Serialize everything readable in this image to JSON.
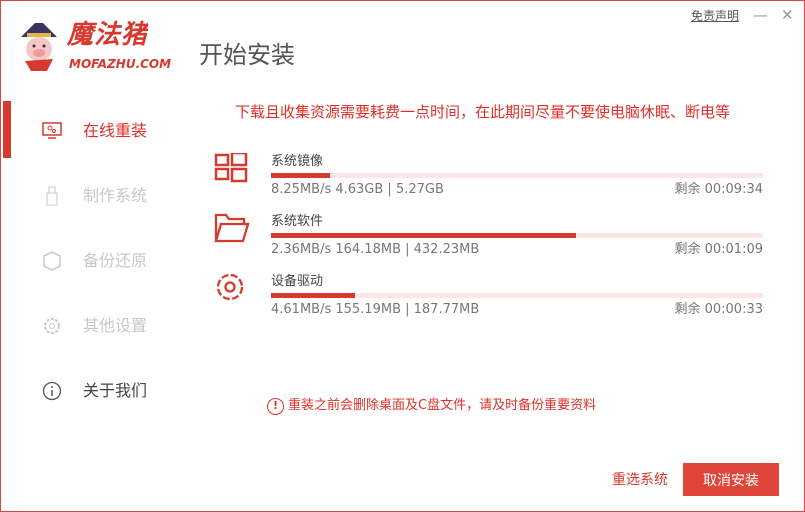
{
  "brand": {
    "name_cn": "魔法猪",
    "name_en": "MOFAZHU.COM"
  },
  "header": {
    "title": "开始安装",
    "disclaimer": "免责声明",
    "minimize": "—",
    "close": "✕"
  },
  "colors": {
    "accent": "#d63a2f",
    "bar_bg": "#fde6e6",
    "disabled": "#c8c8c8"
  },
  "sidebar": {
    "items": [
      {
        "label": "在线重装",
        "icon": "monitor-icon",
        "state": "active"
      },
      {
        "label": "制作系统",
        "icon": "usb-icon",
        "state": "disabled"
      },
      {
        "label": "备份还原",
        "icon": "backup-icon",
        "state": "disabled"
      },
      {
        "label": "其他设置",
        "icon": "gear-icon",
        "state": "disabled"
      },
      {
        "label": "关于我们",
        "icon": "info-icon",
        "state": "normal"
      }
    ]
  },
  "main": {
    "warning": "下载且收集资源需要耗费一点时间，在此期间尽量不要使电脑休眠、断电等",
    "downloads": [
      {
        "name": "系统镜像",
        "icon": "windows-icon",
        "speed": "8.25MB/s 4.63GB | 5.27GB",
        "remaining": "剩余 00:09:34",
        "progress": 0.12
      },
      {
        "name": "系统软件",
        "icon": "folder-icon",
        "speed": "2.36MB/s 164.18MB | 432.23MB",
        "remaining": "剩余 00:01:09",
        "progress": 0.62
      },
      {
        "name": "设备驱动",
        "icon": "gear-icon",
        "speed": "4.61MB/s 155.19MB | 187.77MB",
        "remaining": "剩余 00:00:33",
        "progress": 0.17
      }
    ],
    "note": "重装之前会删除桌面及C盘文件，请及时备份重要资料",
    "note_icon": "!"
  },
  "footer": {
    "reselect": "重选系统",
    "cancel": "取消安装"
  }
}
